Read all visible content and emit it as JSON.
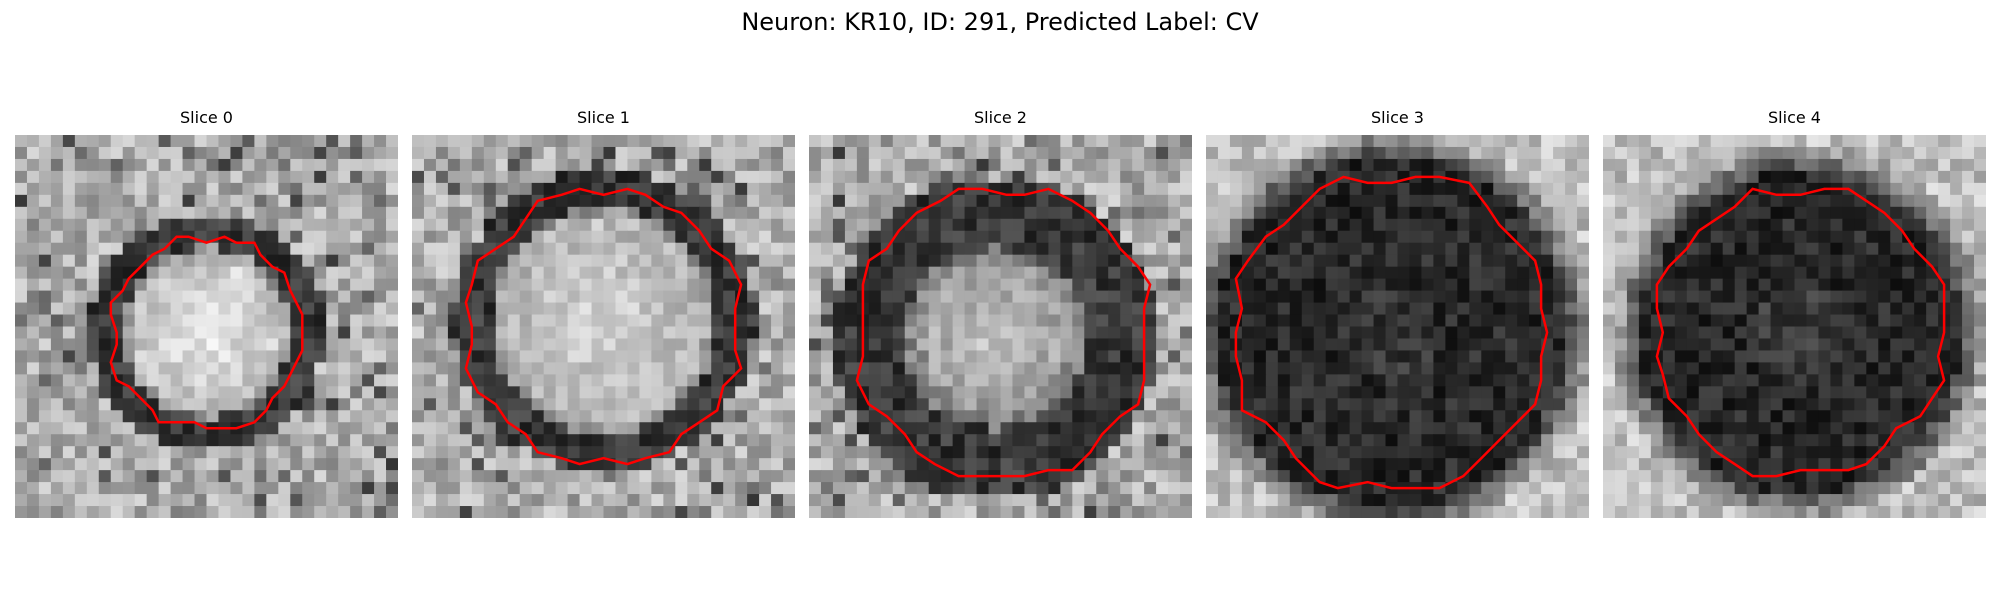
{
  "figure": {
    "title": "Neuron: KR10, ID: 291, Predicted Label: CV"
  },
  "panels": [
    {
      "title": "Slice 0",
      "tone": "light-center"
    },
    {
      "title": "Slice 1",
      "tone": "light-center"
    },
    {
      "title": "Slice 2",
      "tone": "light-center"
    },
    {
      "title": "Slice 3",
      "tone": "dark"
    },
    {
      "title": "Slice 4",
      "tone": "dark"
    }
  ],
  "colors": {
    "contour": "#ff0000",
    "background": "#ffffff",
    "text": "#000000"
  }
}
